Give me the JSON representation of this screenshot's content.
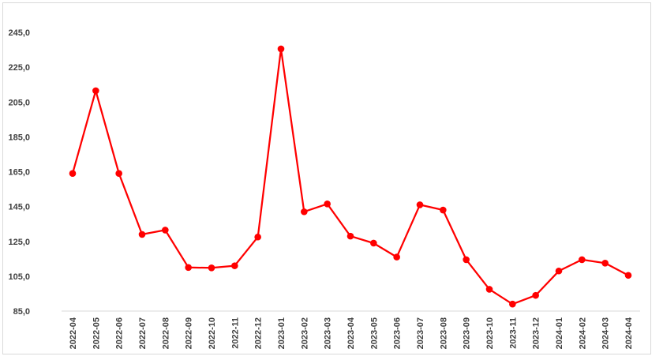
{
  "chart_data": {
    "type": "line",
    "title": "",
    "xlabel": "",
    "ylabel": "",
    "categories": [
      "2022-04",
      "2022-05",
      "2022-06",
      "2022-07",
      "2022-08",
      "2022-09",
      "2022-10",
      "2022-11",
      "2022-12",
      "2023-01",
      "2023-02",
      "2023-03",
      "2023-04",
      "2023-05",
      "2023-06",
      "2023-07",
      "2023-08",
      "2023-09",
      "2023-10",
      "2023-11",
      "2023-12",
      "2024-01",
      "2024-02",
      "2024-03",
      "2024-04"
    ],
    "series": [
      {
        "values": [
          164.0,
          211.5,
          164.0,
          129.0,
          131.5,
          110.0,
          109.8,
          111.0,
          127.5,
          235.5,
          142.0,
          146.5,
          128.0,
          124.0,
          116.0,
          146.0,
          143.0,
          114.5,
          97.5,
          89.0,
          94.0,
          108.0,
          114.5,
          112.5,
          105.5
        ],
        "color": "#ff0000"
      }
    ],
    "y_ticks": [
      "85,0",
      "105,0",
      "125,0",
      "145,0",
      "165,0",
      "185,0",
      "205,0",
      "225,0",
      "245,0"
    ],
    "ylim": [
      85,
      245
    ],
    "grid": false,
    "legend": "none"
  }
}
